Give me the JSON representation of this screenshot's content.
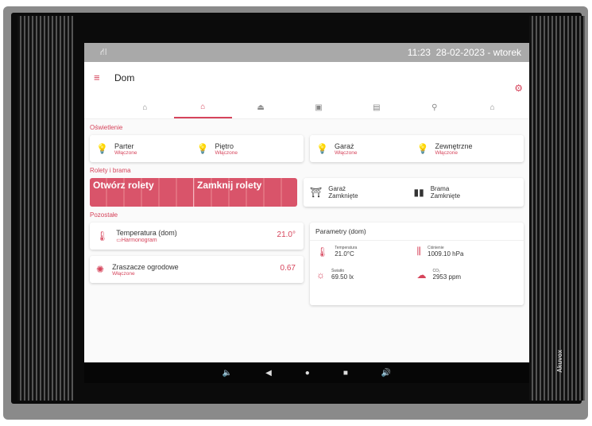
{
  "status": {
    "time": "11:23",
    "date": "28-02-2023 - wtorek",
    "network_icon": "network-icon"
  },
  "header": {
    "title": "Dom"
  },
  "tabs": [
    "home",
    "home-active",
    "floor",
    "basement",
    "bedroom",
    "garden",
    "garage"
  ],
  "lighting": {
    "title": "Oświetlenie",
    "items": [
      {
        "name": "Parter",
        "state": "Włączone"
      },
      {
        "name": "Piętro",
        "state": "Włączone"
      },
      {
        "name": "Garaż",
        "state": "Włączone"
      },
      {
        "name": "Zewnętrzne",
        "state": "Włączone"
      }
    ]
  },
  "blinds": {
    "title": "Rolety i brama",
    "open": "Otwórz rolety",
    "close": "Zamknij rolety",
    "items": [
      {
        "name": "Garaż",
        "state": "Zamknięte"
      },
      {
        "name": "Brama",
        "state": "Zamknięte"
      }
    ]
  },
  "other": {
    "title": "Pozostałe",
    "temperature": {
      "name": "Temperatura (dom)",
      "sub": "Harmonogram",
      "value": "21.0°"
    },
    "sprinklers": {
      "name": "Zraszacze ogrodowe",
      "state": "Włączone",
      "value": "0.67"
    }
  },
  "params": {
    "title": "Parametry (dom)",
    "items": [
      {
        "label": "Temperatura",
        "value": "21.0°C"
      },
      {
        "label": "Ciśnienie",
        "value": "1009.10 hPa"
      },
      {
        "label": "Światło",
        "value": "69.50 lx"
      },
      {
        "label": "CO₂",
        "value": "2953 ppm"
      }
    ]
  },
  "device": {
    "brand": "Akuvox"
  },
  "colors": {
    "accent": "#d6445b"
  }
}
